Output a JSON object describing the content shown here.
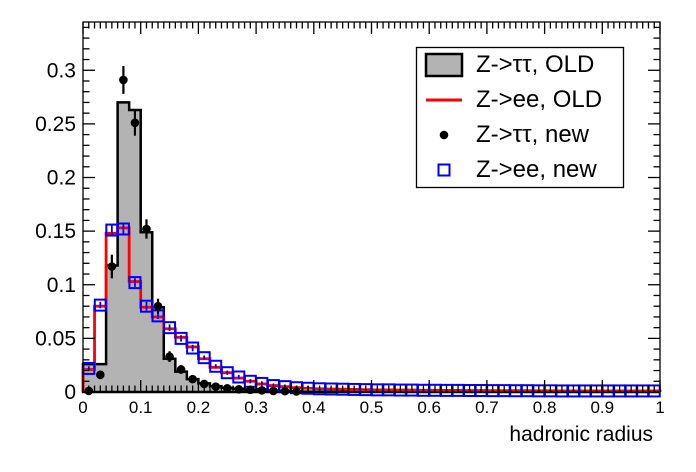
{
  "figure": {
    "background": "#ffffff"
  },
  "colors": {
    "frame": "#000000",
    "tautau_old_fill": "#b3b3b3",
    "tautau_old_line": "#000000",
    "ee_old_line": "#ff0000",
    "tautau_new_marker": "#000000",
    "ee_new_marker": "#0000ff"
  },
  "axes": {
    "xlabel": "hadronic radius",
    "ylabel": "",
    "x_ticks": [
      0,
      0.1,
      0.2,
      0.3,
      0.4,
      0.5,
      0.6,
      0.7,
      0.8,
      0.9,
      1
    ],
    "x_tick_labels": [
      "0",
      "0.1",
      "0.2",
      "0.3",
      "0.4",
      "0.5",
      "0.6",
      "0.7",
      "0.8",
      "0.9",
      "1"
    ],
    "y_ticks": [
      0,
      0.05,
      0.1,
      0.15,
      0.2,
      0.25,
      0.3
    ],
    "y_tick_labels": [
      "0",
      "0.05",
      "0.1",
      "0.15",
      "0.2",
      "0.25",
      "0.3"
    ],
    "x_minor_step": 0.01,
    "y_minor_step": 0.01
  },
  "legend": {
    "position": "top-right",
    "entries": [
      {
        "label": "Z->ττ, OLD",
        "symbol": "filled-box"
      },
      {
        "label": "Z->ee, OLD",
        "symbol": "line"
      },
      {
        "label": "Z->ττ, new",
        "symbol": "filled-circle"
      },
      {
        "label": "Z->ee, new",
        "symbol": "open-square"
      }
    ]
  },
  "chart_data": {
    "type": "histogram",
    "title": "",
    "xlabel": "hadronic radius",
    "ylabel": "",
    "xlim": [
      0,
      1
    ],
    "ylim": [
      0,
      0.345
    ],
    "grid": false,
    "legend_position": "top-right",
    "bin_start": 0,
    "bin_width": 0.02,
    "n_bins": 50,
    "series": [
      {
        "name": "Z->ττ, OLD",
        "style": "filled-step",
        "values": [
          0.026,
          0.026,
          0.118,
          0.27,
          0.263,
          0.149,
          0.079,
          0.031,
          0.019,
          0.012,
          0.008,
          0.0055,
          0.004,
          0.003,
          0.0022,
          0.0016,
          0.0012,
          0.0009,
          0.0006,
          0.0004,
          0.0003,
          0.0002,
          0.0002,
          0.0001,
          0.0001,
          0.0001,
          0.0001,
          0,
          0,
          0,
          0,
          0,
          0,
          0,
          0,
          0,
          0,
          0,
          0,
          0,
          0,
          0,
          0,
          0,
          0,
          0,
          0,
          0,
          0,
          0
        ]
      },
      {
        "name": "Z->ee, OLD",
        "style": "step-line",
        "values": [
          0.021,
          0.08,
          0.148,
          0.153,
          0.103,
          0.079,
          0.07,
          0.059,
          0.051,
          0.042,
          0.031,
          0.023,
          0.018,
          0.013,
          0.01,
          0.0075,
          0.006,
          0.005,
          0.004,
          0.0035,
          0.003,
          0.0028,
          0.0026,
          0.0024,
          0.0022,
          0.002,
          0.002,
          0.0018,
          0.0018,
          0.0016,
          0.0016,
          0.0015,
          0.0015,
          0.0014,
          0.0014,
          0.0013,
          0.0013,
          0.0012,
          0.0012,
          0.0011,
          0.0011,
          0.001,
          0.001,
          0.001,
          0.001,
          0.001,
          0.001,
          0.001,
          0.001,
          0.001
        ]
      },
      {
        "name": "Z->ee, new",
        "style": "points",
        "marker": "open-square",
        "x": [
          0.01,
          0.03,
          0.05,
          0.07,
          0.09,
          0.11,
          0.13,
          0.15,
          0.17,
          0.19,
          0.21,
          0.23,
          0.25,
          0.27,
          0.29,
          0.31,
          0.33,
          0.35,
          0.37,
          0.39,
          0.41,
          0.43,
          0.45,
          0.47,
          0.49,
          0.51,
          0.53,
          0.55,
          0.57,
          0.59,
          0.61,
          0.63,
          0.65,
          0.67,
          0.69,
          0.71,
          0.73,
          0.75,
          0.77,
          0.79,
          0.81,
          0.83,
          0.85,
          0.87,
          0.89,
          0.91,
          0.93,
          0.95,
          0.97,
          0.99
        ],
        "y": [
          0.022,
          0.081,
          0.151,
          0.152,
          0.102,
          0.08,
          0.071,
          0.06,
          0.05,
          0.041,
          0.032,
          0.024,
          0.018,
          0.014,
          0.01,
          0.008,
          0.006,
          0.005,
          0.004,
          0.0035,
          0.003,
          0.0028,
          0.0026,
          0.0024,
          0.0022,
          0.002,
          0.002,
          0.0018,
          0.0018,
          0.0016,
          0.0016,
          0.0015,
          0.0015,
          0.0014,
          0.0014,
          0.0013,
          0.0013,
          0.0012,
          0.0012,
          0.0011,
          0.0011,
          0.001,
          0.001,
          0.001,
          0.001,
          0.001,
          0.001,
          0.001,
          0.001,
          0.001
        ],
        "yerr": [
          0.002,
          0.003,
          0.005,
          0.005,
          0.004,
          0.004,
          0.003,
          0.003,
          0.003,
          0.003,
          0.002,
          0.002,
          0.002,
          0.002,
          0.002,
          0.002,
          0.002,
          0.002,
          0.002,
          0.002,
          0.001,
          0.001,
          0.001,
          0.001,
          0.001,
          0.001,
          0.001,
          0.001,
          0.001,
          0.001,
          0.001,
          0.001,
          0.001,
          0.001,
          0.001,
          0.001,
          0.001,
          0.001,
          0.001,
          0.001,
          0.001,
          0.001,
          0.001,
          0.001,
          0.001,
          0.001,
          0.001,
          0.001,
          0.001,
          0.001
        ]
      },
      {
        "name": "Z->ττ, new",
        "style": "points",
        "marker": "filled-circle",
        "x": [
          0.01,
          0.03,
          0.05,
          0.07,
          0.09,
          0.11,
          0.13,
          0.15,
          0.17,
          0.19,
          0.21,
          0.23,
          0.25,
          0.27,
          0.29,
          0.31,
          0.33,
          0.35,
          0.37
        ],
        "y": [
          0.001,
          0.016,
          0.117,
          0.291,
          0.251,
          0.152,
          0.08,
          0.033,
          0.021,
          0.012,
          0.0075,
          0.005,
          0.0035,
          0.0025,
          0.002,
          0.0015,
          0.001,
          0.0008,
          0.0005
        ],
        "yerr": [
          0.001,
          0.004,
          0.011,
          0.013,
          0.012,
          0.009,
          0.007,
          0.005,
          0.004,
          0.003,
          0.0025,
          0.002,
          0.0017,
          0.0015,
          0.0013,
          0.0012,
          0.001,
          0.0009,
          0.0008
        ]
      }
    ]
  }
}
